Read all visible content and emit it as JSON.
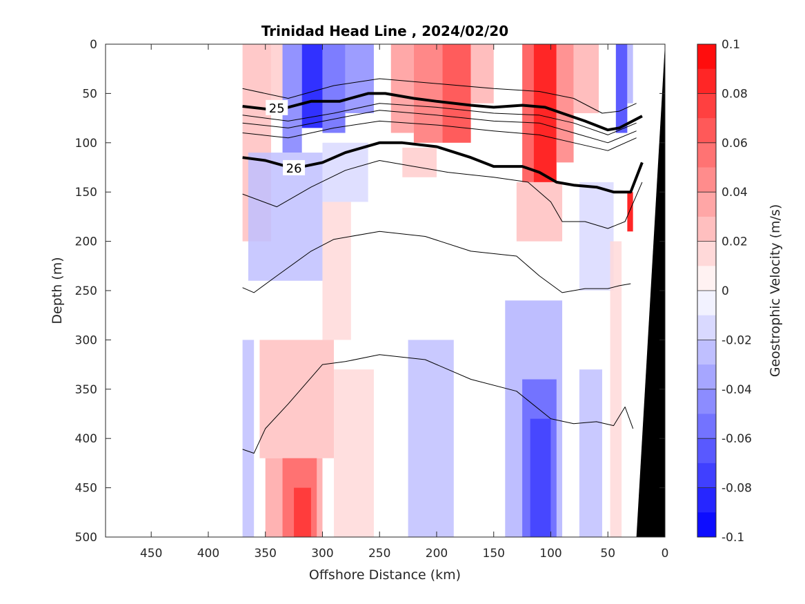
{
  "chart_data": {
    "type": "heatmap",
    "title": "Trinidad Head Line , 2024/02/20",
    "xlabel": "Offshore Distance (km)",
    "ylabel": "Depth (m)",
    "colorbar_label": "Geostrophic Velocity (m/s)",
    "xlim": [
      490,
      0
    ],
    "ylim": [
      0,
      500
    ],
    "x_reversed": true,
    "y_reversed": true,
    "x_ticks": [
      "450",
      "400",
      "350",
      "300",
      "250",
      "200",
      "150",
      "100",
      "50",
      "0"
    ],
    "y_ticks": [
      "0",
      "50",
      "100",
      "150",
      "200",
      "250",
      "300",
      "350",
      "400",
      "450",
      "500"
    ],
    "colorbar_ticks": [
      "0.1",
      "0.08",
      "0.06",
      "0.04",
      "0.02",
      "0",
      "-0.02",
      "-0.04",
      "-0.06",
      "-0.08",
      "-0.1"
    ],
    "clim": [
      -0.1,
      0.1
    ],
    "colormap": {
      "negative": "#0000ff",
      "zero": "#ffffff",
      "positive": "#ff0000"
    },
    "grid": false,
    "velocity_field": {
      "x_range": [
        25,
        370
      ],
      "cells": [
        {
          "x": [
            370,
            345
          ],
          "y": [
            0,
            200
          ],
          "v": 0.025
        },
        {
          "x": [
            345,
            335
          ],
          "y": [
            0,
            60
          ],
          "v": 0.02
        },
        {
          "x": [
            335,
            318
          ],
          "y": [
            0,
            110
          ],
          "v": -0.05
        },
        {
          "x": [
            318,
            300
          ],
          "y": [
            0,
            85
          ],
          "v": -0.095
        },
        {
          "x": [
            300,
            280
          ],
          "y": [
            0,
            90
          ],
          "v": -0.06
        },
        {
          "x": [
            280,
            255
          ],
          "y": [
            0,
            70
          ],
          "v": -0.045
        },
        {
          "x": [
            240,
            220
          ],
          "y": [
            0,
            90
          ],
          "v": 0.04
        },
        {
          "x": [
            220,
            195
          ],
          "y": [
            0,
            100
          ],
          "v": 0.055
        },
        {
          "x": [
            195,
            170
          ],
          "y": [
            0,
            100
          ],
          "v": 0.075
        },
        {
          "x": [
            170,
            150
          ],
          "y": [
            0,
            60
          ],
          "v": 0.03
        },
        {
          "x": [
            125,
            115
          ],
          "y": [
            0,
            140
          ],
          "v": 0.07
        },
        {
          "x": [
            115,
            95
          ],
          "y": [
            0,
            140
          ],
          "v": 0.1
        },
        {
          "x": [
            95,
            80
          ],
          "y": [
            0,
            120
          ],
          "v": 0.05
        },
        {
          "x": [
            80,
            58
          ],
          "y": [
            0,
            70
          ],
          "v": 0.03
        },
        {
          "x": [
            43,
            33
          ],
          "y": [
            0,
            90
          ],
          "v": -0.075
        },
        {
          "x": [
            33,
            28
          ],
          "y": [
            0,
            60
          ],
          "v": -0.03
        },
        {
          "x": [
            33,
            28
          ],
          "y": [
            150,
            190
          ],
          "v": 0.1
        },
        {
          "x": [
            365,
            300
          ],
          "y": [
            110,
            240
          ],
          "v": -0.025
        },
        {
          "x": [
            300,
            260
          ],
          "y": [
            100,
            160
          ],
          "v": -0.015
        },
        {
          "x": [
            230,
            200
          ],
          "y": [
            105,
            135
          ],
          "v": 0.02
        },
        {
          "x": [
            130,
            90
          ],
          "y": [
            140,
            200
          ],
          "v": 0.025
        },
        {
          "x": [
            75,
            45
          ],
          "y": [
            140,
            250
          ],
          "v": -0.015
        },
        {
          "x": [
            300,
            275
          ],
          "y": [
            160,
            300
          ],
          "v": 0.015
        },
        {
          "x": [
            355,
            290
          ],
          "y": [
            300,
            420
          ],
          "v": 0.025
        },
        {
          "x": [
            350,
            300
          ],
          "y": [
            420,
            500
          ],
          "v": 0.035
        },
        {
          "x": [
            335,
            305
          ],
          "y": [
            420,
            500
          ],
          "v": 0.06
        },
        {
          "x": [
            325,
            310
          ],
          "y": [
            450,
            500
          ],
          "v": 0.08
        },
        {
          "x": [
            370,
            360
          ],
          "y": [
            300,
            500
          ],
          "v": -0.025
        },
        {
          "x": [
            290,
            255
          ],
          "y": [
            330,
            500
          ],
          "v": 0.015
        },
        {
          "x": [
            225,
            185
          ],
          "y": [
            300,
            500
          ],
          "v": -0.025
        },
        {
          "x": [
            140,
            90
          ],
          "y": [
            260,
            500
          ],
          "v": -0.03
        },
        {
          "x": [
            125,
            95
          ],
          "y": [
            340,
            500
          ],
          "v": -0.06
        },
        {
          "x": [
            118,
            100
          ],
          "y": [
            380,
            500
          ],
          "v": -0.075
        },
        {
          "x": [
            75,
            55
          ],
          "y": [
            330,
            500
          ],
          "v": -0.025
        },
        {
          "x": [
            48,
            38
          ],
          "y": [
            200,
            500
          ],
          "v": 0.015
        }
      ]
    },
    "isopycnals": [
      {
        "label": "",
        "bold": false,
        "points": [
          [
            370,
            45
          ],
          [
            330,
            55
          ],
          [
            290,
            42
          ],
          [
            250,
            35
          ],
          [
            200,
            40
          ],
          [
            150,
            45
          ],
          [
            110,
            48
          ],
          [
            80,
            55
          ],
          [
            55,
            70
          ],
          [
            40,
            68
          ],
          [
            25,
            60
          ]
        ]
      },
      {
        "label": "25",
        "bold": true,
        "label_at": [
          340,
          65
        ],
        "points": [
          [
            370,
            63
          ],
          [
            340,
            67
          ],
          [
            310,
            58
          ],
          [
            285,
            58
          ],
          [
            260,
            50
          ],
          [
            245,
            50
          ],
          [
            220,
            55
          ],
          [
            200,
            58
          ],
          [
            170,
            62
          ],
          [
            150,
            64
          ],
          [
            125,
            62
          ],
          [
            105,
            64
          ],
          [
            90,
            70
          ],
          [
            70,
            78
          ],
          [
            50,
            87
          ],
          [
            40,
            85
          ],
          [
            20,
            73
          ]
        ]
      },
      {
        "label": "",
        "bold": false,
        "points": [
          [
            370,
            72
          ],
          [
            330,
            78
          ],
          [
            290,
            70
          ],
          [
            250,
            60
          ],
          [
            200,
            64
          ],
          [
            150,
            70
          ],
          [
            110,
            72
          ],
          [
            80,
            80
          ],
          [
            50,
            92
          ],
          [
            25,
            80
          ]
        ]
      },
      {
        "label": "",
        "bold": false,
        "points": [
          [
            370,
            80
          ],
          [
            330,
            85
          ],
          [
            290,
            76
          ],
          [
            250,
            67
          ],
          [
            200,
            72
          ],
          [
            150,
            78
          ],
          [
            110,
            80
          ],
          [
            80,
            90
          ],
          [
            50,
            100
          ],
          [
            25,
            88
          ]
        ]
      },
      {
        "label": "",
        "bold": false,
        "points": [
          [
            370,
            90
          ],
          [
            330,
            95
          ],
          [
            290,
            85
          ],
          [
            250,
            78
          ],
          [
            200,
            82
          ],
          [
            150,
            88
          ],
          [
            110,
            92
          ],
          [
            80,
            100
          ],
          [
            50,
            108
          ],
          [
            25,
            95
          ]
        ]
      },
      {
        "label": "26",
        "bold": true,
        "label_at": [
          325,
          126
        ],
        "points": [
          [
            370,
            115
          ],
          [
            350,
            118
          ],
          [
            325,
            126
          ],
          [
            300,
            120
          ],
          [
            280,
            110
          ],
          [
            250,
            100
          ],
          [
            230,
            100
          ],
          [
            200,
            104
          ],
          [
            170,
            115
          ],
          [
            150,
            124
          ],
          [
            125,
            124
          ],
          [
            110,
            130
          ],
          [
            95,
            140
          ],
          [
            80,
            143
          ],
          [
            60,
            145
          ],
          [
            45,
            150
          ],
          [
            30,
            150
          ],
          [
            20,
            120
          ]
        ]
      },
      {
        "label": "",
        "bold": false,
        "points": [
          [
            370,
            152
          ],
          [
            340,
            165
          ],
          [
            310,
            145
          ],
          [
            280,
            128
          ],
          [
            250,
            118
          ],
          [
            220,
            124
          ],
          [
            190,
            130
          ],
          [
            150,
            135
          ],
          [
            120,
            140
          ],
          [
            100,
            160
          ],
          [
            90,
            180
          ],
          [
            70,
            180
          ],
          [
            50,
            187
          ],
          [
            35,
            180
          ],
          [
            20,
            140
          ]
        ]
      },
      {
        "label": "",
        "bold": false,
        "points": [
          [
            370,
            247
          ],
          [
            360,
            252
          ],
          [
            340,
            235
          ],
          [
            310,
            210
          ],
          [
            290,
            198
          ],
          [
            250,
            190
          ],
          [
            210,
            195
          ],
          [
            170,
            210
          ],
          [
            130,
            215
          ],
          [
            110,
            235
          ],
          [
            90,
            252
          ],
          [
            70,
            248
          ],
          [
            50,
            248
          ],
          [
            40,
            245
          ],
          [
            30,
            243
          ]
        ]
      },
      {
        "label": "",
        "bold": false,
        "points": [
          [
            370,
            411
          ],
          [
            360,
            415
          ],
          [
            350,
            390
          ],
          [
            330,
            365
          ],
          [
            300,
            325
          ],
          [
            280,
            322
          ],
          [
            250,
            315
          ],
          [
            210,
            320
          ],
          [
            170,
            340
          ],
          [
            130,
            352
          ],
          [
            100,
            380
          ],
          [
            80,
            385
          ],
          [
            60,
            383
          ],
          [
            45,
            387
          ],
          [
            35,
            368
          ],
          [
            28,
            390
          ]
        ]
      }
    ],
    "bathymetry": {
      "points": [
        [
          0,
          0
        ],
        [
          25,
          500
        ],
        [
          0,
          500
        ]
      ],
      "color": "#000000"
    }
  }
}
